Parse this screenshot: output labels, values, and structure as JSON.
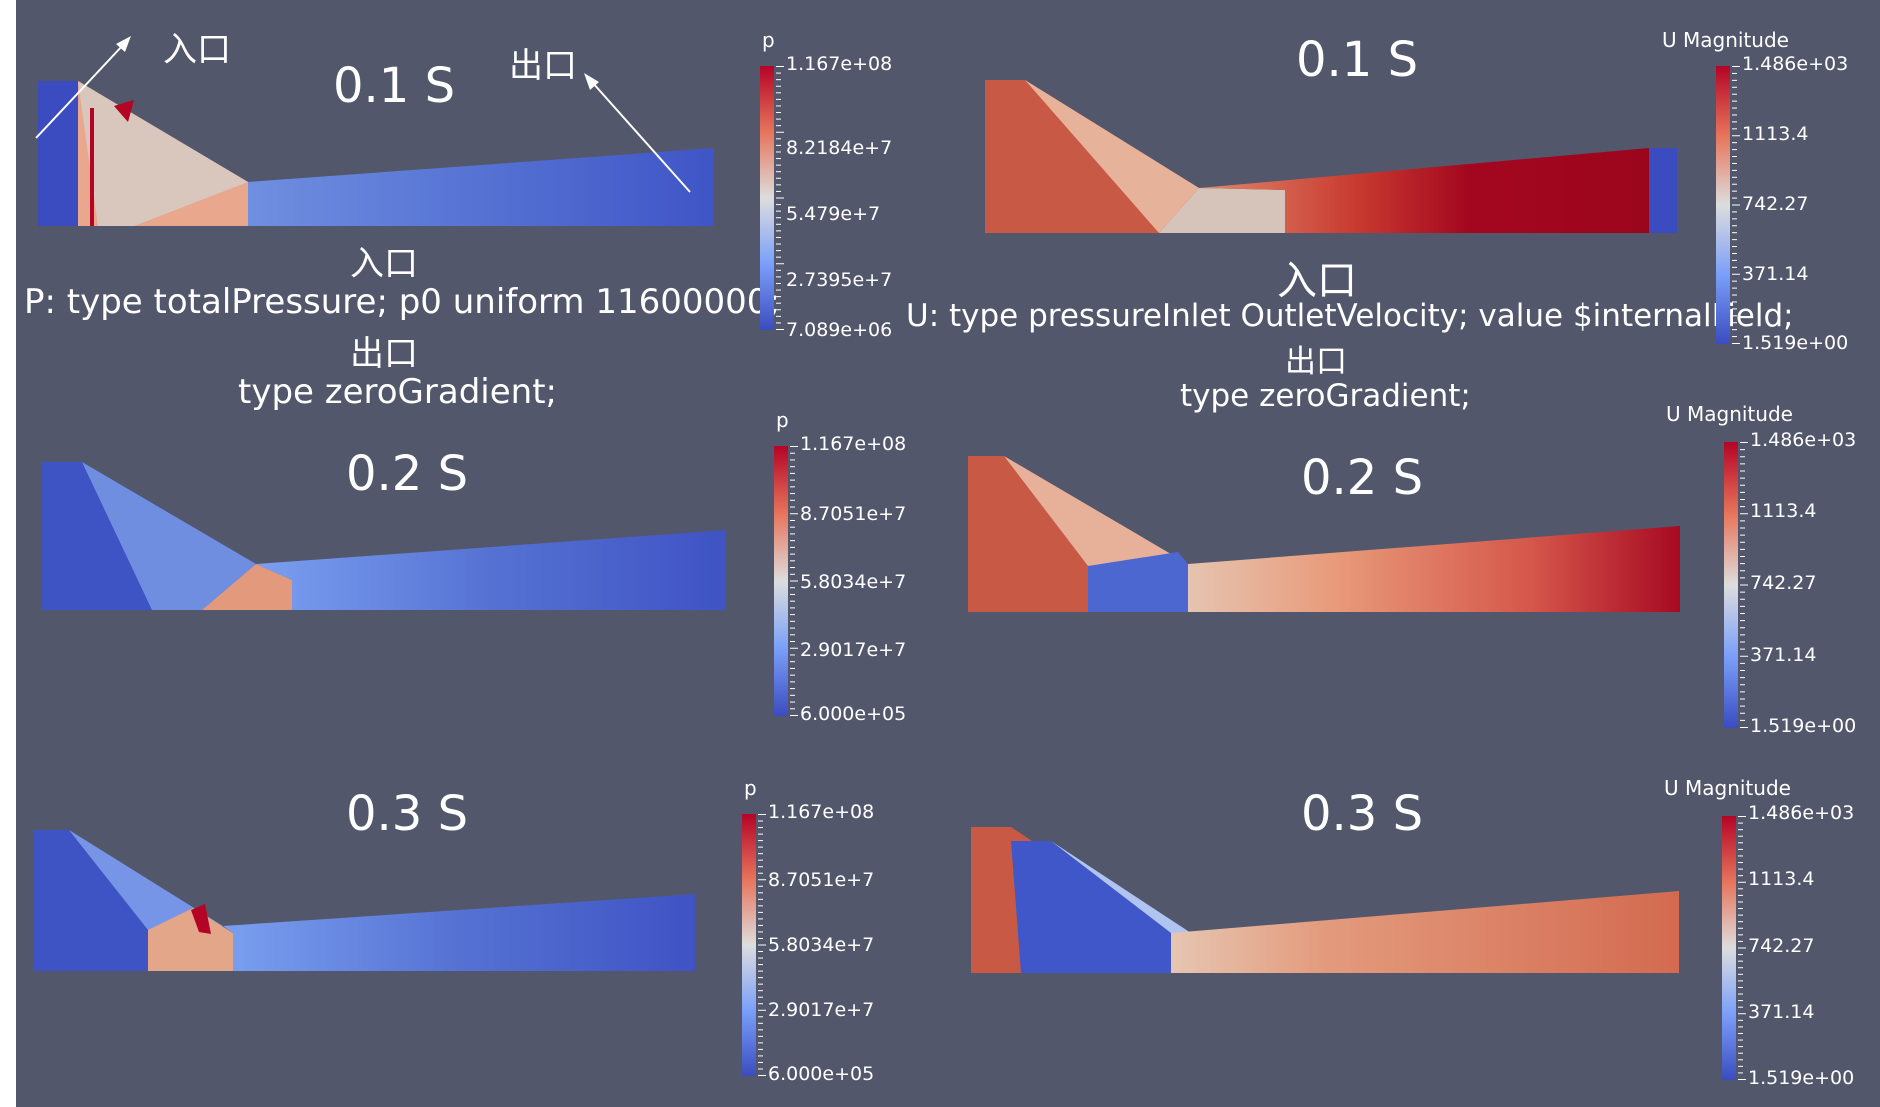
{
  "colors": {
    "background": "#52576b",
    "cold": "#3b4cc0",
    "warm": "#b40426",
    "neutral": "#dddddd"
  },
  "annotations": {
    "inlet": "入口",
    "outlet": "出口"
  },
  "pressure_panels": [
    {
      "time": "0.1 S",
      "legend_title": "p",
      "labels": [
        "1.167e+08",
        "8.2184e+7",
        "5.479e+7",
        "2.7395e+7",
        "7.089e+06"
      ]
    },
    {
      "time": "0.2 S",
      "legend_title": "p",
      "labels": [
        "1.167e+08",
        "8.7051e+7",
        "5.8034e+7",
        "2.9017e+7",
        "6.000e+05"
      ]
    },
    {
      "time": "0.3 S",
      "legend_title": "p",
      "labels": [
        "1.167e+08",
        "8.7051e+7",
        "5.8034e+7",
        "2.9017e+7",
        "6.000e+05"
      ]
    }
  ],
  "velocity_panels": [
    {
      "time": "0.1 S",
      "legend_title": "U Magnitude",
      "labels": [
        "1.486e+03",
        "1113.4",
        "742.27",
        "371.14",
        "1.519e+00"
      ]
    },
    {
      "time": "0.2 S",
      "legend_title": "U Magnitude",
      "labels": [
        "1.486e+03",
        "1113.4",
        "742.27",
        "371.14",
        "1.519e+00"
      ]
    },
    {
      "time": "0.3 S",
      "legend_title": "U Magnitude",
      "labels": [
        "1.486e+03",
        "1113.4",
        "742.27",
        "371.14",
        "1.519e+00"
      ]
    }
  ],
  "pressure_bc": {
    "inlet_title": "入口",
    "inlet_text": "P: type  totalPressure; p0  uniform 11600000;",
    "outlet_title": "出口",
    "outlet_text": "type  zeroGradient;"
  },
  "velocity_bc": {
    "inlet_title": "入口",
    "inlet_text": "U: type pressureInlet  OutletVelocity; value $internalField;",
    "outlet_title": "出口",
    "outlet_text": "type  zeroGradient;"
  }
}
